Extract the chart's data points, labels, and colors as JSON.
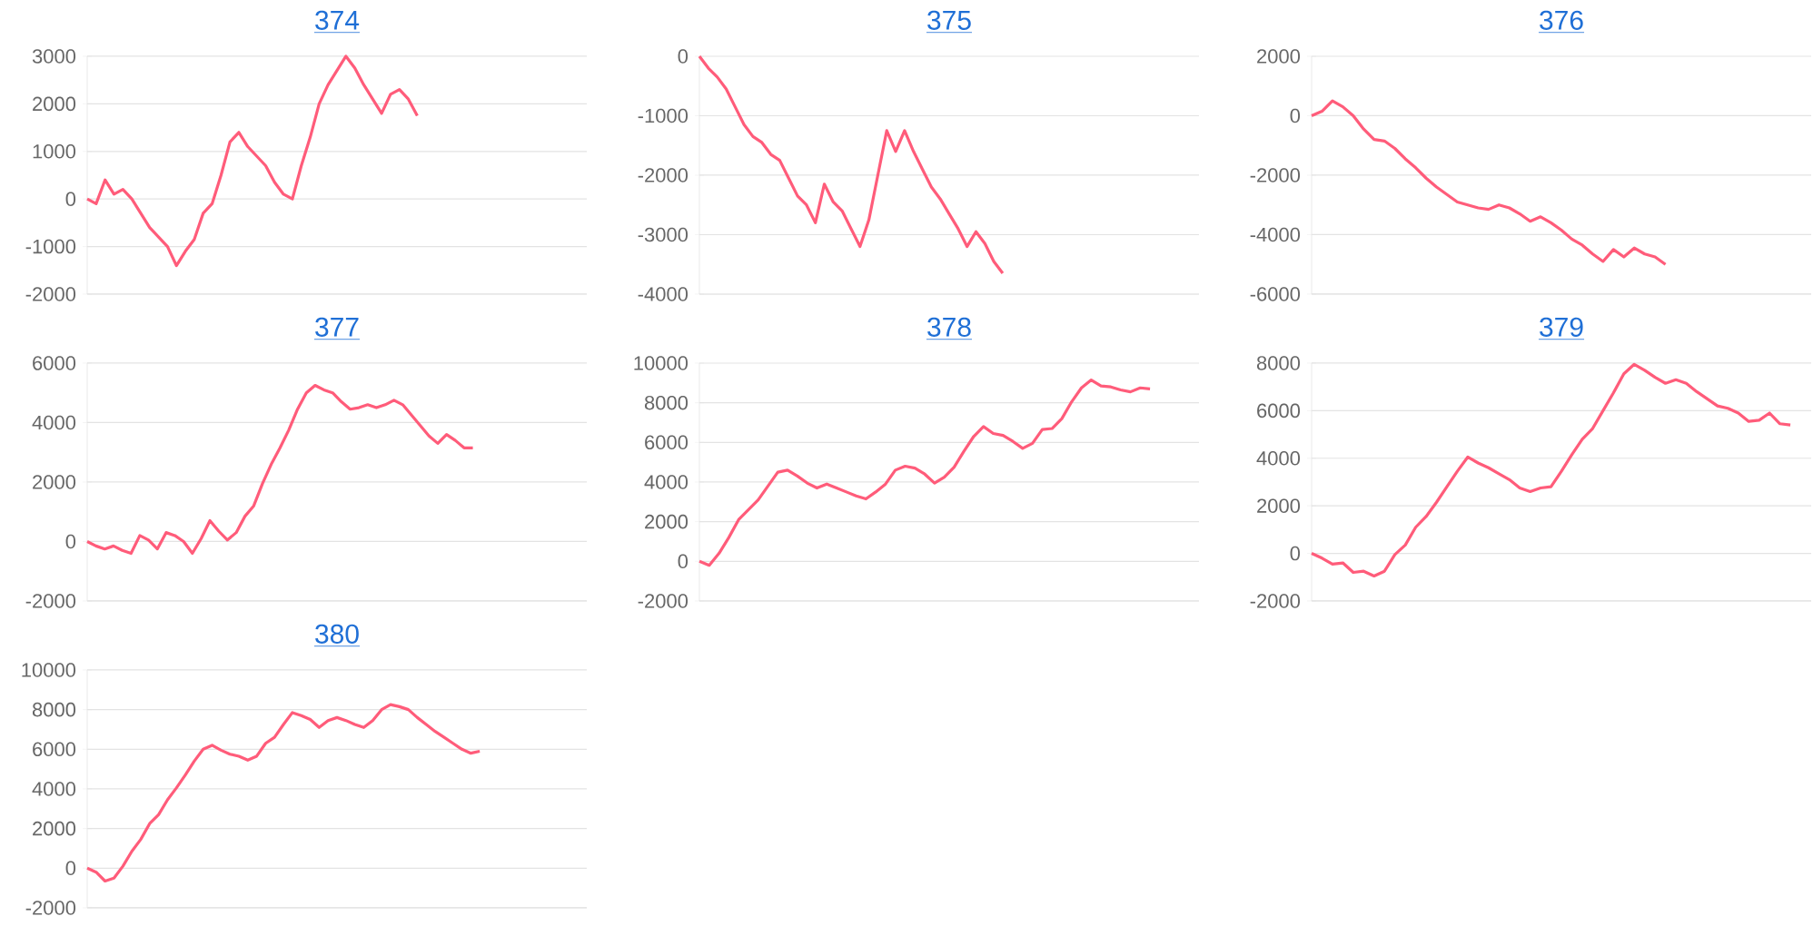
{
  "chart_data": [
    {
      "type": "line",
      "title": "374",
      "color": "#ff5c7a",
      "grid": "y",
      "ylim": [
        -2000,
        3000
      ],
      "yticks": [
        -2000,
        -1000,
        0,
        1000,
        2000,
        3000
      ],
      "categories": [
        null,
        null,
        null,
        null,
        null,
        null,
        null,
        null,
        null,
        null,
        null,
        null,
        null,
        null,
        null,
        null,
        null,
        null,
        null,
        null,
        null,
        null,
        null,
        null,
        null,
        null,
        null,
        null,
        null,
        null,
        null,
        null,
        null,
        null,
        null,
        null,
        null,
        null,
        null,
        null,
        null,
        null,
        null,
        null,
        null,
        null,
        null,
        null,
        null,
        null,
        null,
        null,
        null,
        null,
        null,
        null,
        null
      ],
      "values": [
        0,
        -100,
        400,
        100,
        200,
        0,
        -300,
        -600,
        -800,
        -1000,
        -1400,
        -1100,
        -850,
        -300,
        -100,
        500,
        1200,
        1400,
        1100,
        900,
        700,
        350,
        100,
        0,
        700,
        1300,
        2000,
        2400,
        2700,
        3000,
        2750,
        2400,
        2100,
        1800,
        2200,
        2300,
        2100,
        1750,
        null,
        null,
        null,
        null,
        null,
        null,
        null,
        null,
        null,
        null,
        null,
        null,
        null,
        null,
        null,
        null,
        null,
        null,
        null
      ]
    },
    {
      "type": "line",
      "title": "375",
      "color": "#ff5c7a",
      "grid": "y",
      "ylim": [
        -4000,
        0
      ],
      "yticks": [
        -4000,
        -3000,
        -2000,
        -1000,
        0
      ],
      "categories": [
        null,
        null,
        null,
        null,
        null,
        null,
        null,
        null,
        null,
        null,
        null,
        null,
        null,
        null,
        null,
        null,
        null,
        null,
        null,
        null,
        null,
        null,
        null,
        null,
        null,
        null,
        null,
        null,
        null,
        null,
        null,
        null,
        null,
        null,
        null,
        null,
        null,
        null,
        null,
        null,
        null,
        null,
        null,
        null,
        null,
        null,
        null,
        null,
        null,
        null,
        null,
        null,
        null,
        null,
        null,
        null,
        null
      ],
      "values": [
        0,
        -200,
        -350,
        -550,
        -850,
        -1150,
        -1350,
        -1450,
        -1650,
        -1750,
        -2050,
        -2350,
        -2500,
        -2800,
        -2150,
        -2450,
        -2600,
        -2900,
        -3200,
        -2750,
        -2000,
        -1250,
        -1600,
        -1250,
        -1600,
        -1900,
        -2200,
        -2400,
        -2650,
        -2900,
        -3200,
        -2950,
        -3150,
        -3450,
        -3650,
        null,
        null,
        null,
        null,
        null,
        null,
        null,
        null,
        null,
        null,
        null,
        null,
        null,
        null,
        null,
        null,
        null,
        null,
        null,
        null,
        null,
        null
      ]
    },
    {
      "type": "line",
      "title": "376",
      "color": "#ff5c7a",
      "grid": "y",
      "ylim": [
        -6000,
        2000
      ],
      "yticks": [
        -6000,
        -4000,
        -2000,
        0,
        2000
      ],
      "categories": [
        null,
        null,
        null,
        null,
        null,
        null,
        null,
        null,
        null,
        null,
        null,
        null,
        null,
        null,
        null,
        null,
        null,
        null,
        null,
        null,
        null,
        null,
        null,
        null,
        null,
        null,
        null,
        null,
        null,
        null,
        null,
        null,
        null,
        null,
        null,
        null,
        null,
        null,
        null,
        null,
        null,
        null,
        null,
        null,
        null,
        null,
        null,
        null,
        null
      ],
      "values": [
        0,
        150,
        500,
        300,
        0,
        -450,
        -800,
        -850,
        -1100,
        -1450,
        -1750,
        -2100,
        -2400,
        -2650,
        -2900,
        -3000,
        -3100,
        -3150,
        -3000,
        -3100,
        -3300,
        -3550,
        -3400,
        -3600,
        -3850,
        -4150,
        -4350,
        -4650,
        -4900,
        -4500,
        -4750,
        -4450,
        -4650,
        -4750,
        -5000,
        null,
        null,
        null,
        null,
        null,
        null,
        null,
        null,
        null,
        null,
        null,
        null,
        null,
        null
      ]
    },
    {
      "type": "line",
      "title": "377",
      "color": "#ff5c7a",
      "grid": "y",
      "ylim": [
        -2000,
        6000
      ],
      "yticks": [
        -2000,
        0,
        2000,
        4000,
        6000
      ],
      "categories": [
        null,
        null,
        null,
        null,
        null,
        null,
        null,
        null,
        null,
        null,
        null,
        null,
        null,
        null,
        null,
        null,
        null,
        null,
        null,
        null,
        null,
        null,
        null,
        null,
        null,
        null,
        null,
        null,
        null,
        null,
        null,
        null,
        null,
        null,
        null,
        null,
        null,
        null,
        null,
        null,
        null,
        null,
        null,
        null,
        null,
        null,
        null,
        null,
        null,
        null,
        null,
        null,
        null,
        null,
        null,
        null,
        null,
        null
      ],
      "values": [
        0,
        -150,
        -250,
        -150,
        -300,
        -400,
        200,
        50,
        -250,
        300,
        200,
        0,
        -400,
        100,
        700,
        350,
        50,
        300,
        850,
        1200,
        1950,
        2600,
        3150,
        3750,
        4450,
        5000,
        5250,
        5100,
        5000,
        4700,
        4450,
        4500,
        4600,
        4500,
        4600,
        4750,
        4600,
        4250,
        3900,
        3550,
        3300,
        3600,
        3400,
        3150,
        3150,
        null,
        null,
        null,
        null,
        null,
        null,
        null,
        null,
        null,
        null,
        null,
        null,
        null
      ]
    },
    {
      "type": "line",
      "title": "378",
      "color": "#ff5c7a",
      "grid": "y",
      "ylim": [
        -2000,
        10000
      ],
      "yticks": [
        -2000,
        0,
        2000,
        4000,
        6000,
        8000,
        10000
      ],
      "categories": [
        null,
        null,
        null,
        null,
        null,
        null,
        null,
        null,
        null,
        null,
        null,
        null,
        null,
        null,
        null,
        null,
        null,
        null,
        null,
        null,
        null,
        null,
        null,
        null,
        null,
        null,
        null,
        null,
        null,
        null,
        null,
        null,
        null,
        null,
        null,
        null,
        null,
        null,
        null,
        null,
        null,
        null,
        null,
        null,
        null,
        null,
        null,
        null,
        null,
        null,
        null,
        null
      ],
      "values": [
        0,
        -200,
        400,
        1200,
        2100,
        2600,
        3100,
        3800,
        4500,
        4600,
        4300,
        3950,
        3700,
        3900,
        3700,
        3500,
        3300,
        3150,
        3500,
        3900,
        4600,
        4800,
        4700,
        4400,
        3950,
        4250,
        4750,
        5550,
        6300,
        6800,
        6450,
        6350,
        6050,
        5700,
        5950,
        6650,
        6700,
        7200,
        8050,
        8750,
        9150,
        8850,
        8800,
        8650,
        8550,
        8750,
        8700,
        null,
        null,
        null,
        null,
        null
      ]
    },
    {
      "type": "line",
      "title": "379",
      "color": "#ff5c7a",
      "grid": "y",
      "ylim": [
        -2000,
        8000
      ],
      "yticks": [
        -2000,
        0,
        2000,
        4000,
        6000,
        8000
      ],
      "categories": [
        null,
        null,
        null,
        null,
        null,
        null,
        null,
        null,
        null,
        null,
        null,
        null,
        null,
        null,
        null,
        null,
        null,
        null,
        null,
        null,
        null,
        null,
        null,
        null,
        null,
        null,
        null,
        null,
        null,
        null,
        null,
        null,
        null,
        null,
        null,
        null,
        null,
        null,
        null,
        null,
        null,
        null,
        null,
        null,
        null,
        null,
        null,
        null,
        null
      ],
      "values": [
        0,
        -200,
        -450,
        -400,
        -800,
        -750,
        -950,
        -750,
        -50,
        350,
        1100,
        1550,
        2150,
        2800,
        3450,
        4050,
        3800,
        3600,
        3350,
        3100,
        2750,
        2600,
        2750,
        2800,
        3450,
        4150,
        4800,
        5250,
        6000,
        6750,
        7550,
        7950,
        7700,
        7400,
        7150,
        7300,
        7150,
        6800,
        6500,
        6200,
        6100,
        5900,
        5550,
        5600,
        5900,
        5450,
        5400,
        null,
        null
      ]
    },
    {
      "type": "line",
      "title": "380",
      "color": "#ff5c7a",
      "grid": "y",
      "ylim": [
        -2000,
        10000
      ],
      "yticks": [
        -2000,
        0,
        2000,
        4000,
        6000,
        8000,
        10000
      ],
      "categories": [
        null,
        null,
        null,
        null,
        null,
        null,
        null,
        null,
        null,
        null,
        null,
        null,
        null,
        null,
        null,
        null,
        null,
        null,
        null,
        null,
        null,
        null,
        null,
        null,
        null,
        null,
        null,
        null,
        null,
        null,
        null,
        null,
        null,
        null,
        null,
        null,
        null,
        null,
        null,
        null,
        null,
        null,
        null,
        null,
        null,
        null,
        null,
        null,
        null,
        null,
        null,
        null,
        null,
        null,
        null,
        null,
        null
      ],
      "values": [
        0,
        -200,
        -650,
        -500,
        100,
        850,
        1450,
        2250,
        2700,
        3450,
        4050,
        4700,
        5400,
        6000,
        6200,
        5950,
        5750,
        5650,
        5450,
        5650,
        6300,
        6600,
        7250,
        7850,
        7700,
        7500,
        7100,
        7450,
        7600,
        7450,
        7250,
        7100,
        7450,
        8000,
        8250,
        8150,
        8000,
        7600,
        7250,
        6900,
        6600,
        6300,
        6000,
        5800,
        5900,
        null,
        null,
        null,
        null,
        null,
        null,
        null,
        null,
        null,
        null,
        null,
        null
      ]
    }
  ]
}
